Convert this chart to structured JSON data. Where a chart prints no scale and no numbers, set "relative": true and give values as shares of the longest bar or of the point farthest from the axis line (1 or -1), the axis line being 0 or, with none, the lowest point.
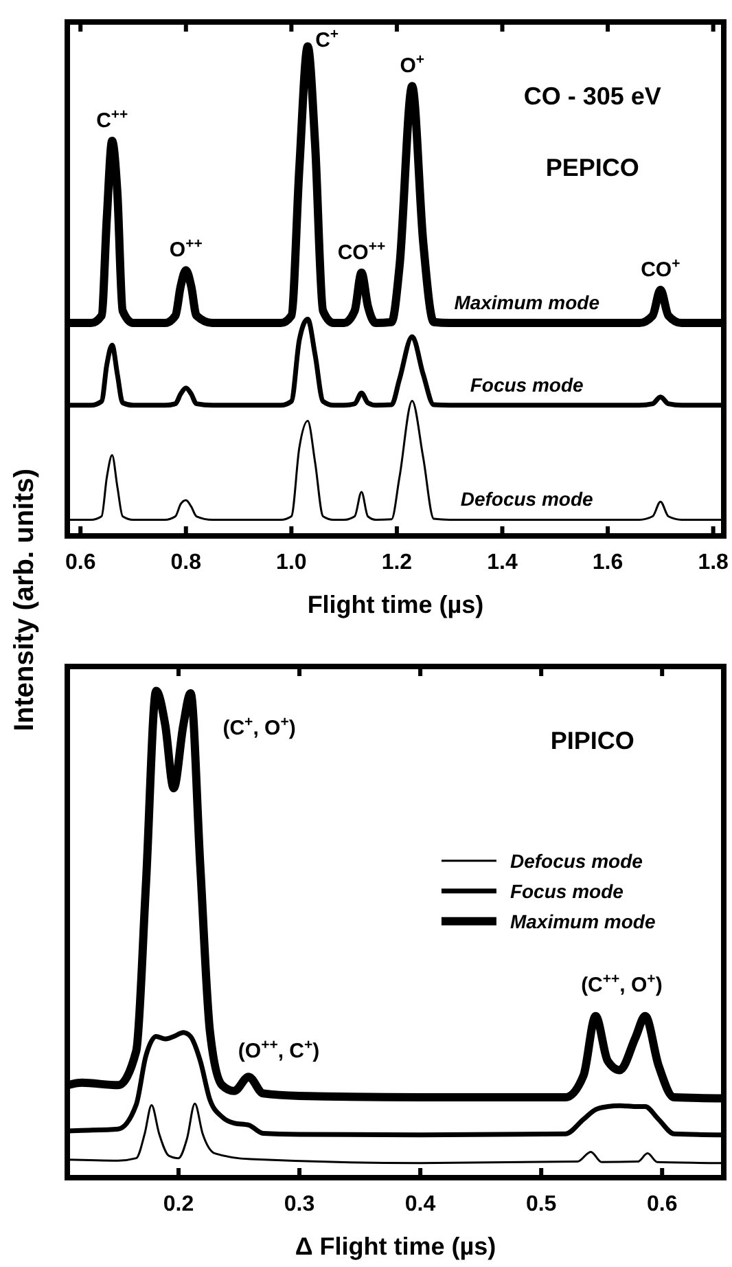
{
  "chart_data": [
    {
      "type": "line",
      "relative": true,
      "xlabel": "Flight time (µs)",
      "ylabel": "Intensity (arb. units)",
      "xlim": [
        0.575,
        1.82
      ],
      "xticks": [
        0.6,
        0.8,
        {
          "value": 1,
          "label": "1.0"
        },
        1.2,
        1.4,
        1.6,
        1.8
      ],
      "legend": false,
      "tick_labels": "x",
      "x": [
        0.575,
        0.62,
        0.64,
        0.65,
        0.66,
        0.67,
        0.68,
        0.7,
        0.76,
        0.78,
        0.79,
        0.8,
        0.81,
        0.82,
        0.85,
        0.98,
        1.0,
        1.015,
        1.031,
        1.045,
        1.06,
        1.08,
        1.1,
        1.12,
        1.133,
        1.145,
        1.16,
        1.19,
        1.205,
        1.229,
        1.25,
        1.27,
        1.3,
        1.66,
        1.685,
        1.7,
        1.715,
        1.74,
        1.82
      ],
      "series": [
        {
          "name": "Defocus mode",
          "color": "#000000",
          "values": [
            0.033,
            0.033,
            0.04,
            0.12,
            0.165,
            0.1,
            0.04,
            0.033,
            0.033,
            0.04,
            0.065,
            0.073,
            0.06,
            0.04,
            0.033,
            0.033,
            0.04,
            0.18,
            0.235,
            0.15,
            0.04,
            0.033,
            0.033,
            0.04,
            0.09,
            0.04,
            0.033,
            0.034,
            0.12,
            0.276,
            0.16,
            0.035,
            0.033,
            0.033,
            0.04,
            0.07,
            0.04,
            0.033,
            0.033
          ]
        },
        {
          "name": "Focus mode",
          "color": "#000000",
          "values": [
            0.267,
            0.267,
            0.275,
            0.35,
            0.39,
            0.33,
            0.272,
            0.267,
            0.267,
            0.27,
            0.29,
            0.302,
            0.29,
            0.27,
            0.267,
            0.267,
            0.275,
            0.4,
            0.443,
            0.37,
            0.275,
            0.267,
            0.267,
            0.27,
            0.292,
            0.272,
            0.267,
            0.268,
            0.32,
            0.407,
            0.33,
            0.268,
            0.267,
            0.267,
            0.27,
            0.284,
            0.27,
            0.267,
            0.267
          ]
        },
        {
          "name": "Maximum mode",
          "color": "#000000",
          "values": [
            0.435,
            0.435,
            0.45,
            0.65,
            0.807,
            0.7,
            0.46,
            0.435,
            0.435,
            0.45,
            0.51,
            0.543,
            0.51,
            0.45,
            0.435,
            0.435,
            0.45,
            0.75,
            1,
            0.8,
            0.46,
            0.435,
            0.435,
            0.46,
            0.538,
            0.47,
            0.435,
            0.437,
            0.55,
            0.919,
            0.6,
            0.437,
            0.435,
            0.435,
            0.45,
            0.503,
            0.45,
            0.435,
            0.435
          ]
        }
      ],
      "annotations": [
        "CO - 305 eV",
        "PEPICO",
        {
          "text": "C$^{++}$",
          "x": 0.66,
          "y": 0.807
        },
        {
          "text": "O$^{++}$",
          "x": 0.8,
          "y": 0.543
        },
        {
          "text": "C$^{+}$",
          "x": 1.031,
          "y": 1
        },
        {
          "text": "CO$^{++}$",
          "x": 1.133,
          "y": 0.538
        },
        {
          "text": "O$^{+}$",
          "x": 1.229,
          "y": 0.919
        },
        {
          "text": "CO$^{+}$",
          "x": 1.7,
          "y": 0.503
        }
      ]
    },
    {
      "type": "line",
      "relative": true,
      "xlabel": "Δ Flight time (µs)",
      "xlim": [
        0.108,
        0.651
      ],
      "xticks": [
        0.2,
        0.3,
        0.4,
        0.5,
        0.6
      ],
      "legend": "right",
      "tick_labels": "x",
      "series": [
        {
          "name": "Defocus mode",
          "color": "#000000",
          "x": [
            0.108,
            0.15,
            0.165,
            0.172,
            0.1777,
            0.184,
            0.192,
            0.2,
            0.207,
            0.2135,
            0.22,
            0.23,
            0.26,
            0.4,
            0.53,
            0.541,
            0.55,
            0.58,
            0.588,
            0.596,
            0.651
          ],
          "values": [
            0.037,
            0.035,
            0.04,
            0.09,
            0.149,
            0.09,
            0.045,
            0.04,
            0.08,
            0.152,
            0.09,
            0.05,
            0.038,
            0.03,
            0.033,
            0.053,
            0.032,
            0.033,
            0.05,
            0.032,
            0.03
          ]
        },
        {
          "name": "Focus mode",
          "color": "#000000",
          "x": [
            0.108,
            0.12,
            0.15,
            0.165,
            0.173,
            0.1815,
            0.189,
            0.196,
            0.204,
            0.21,
            0.218,
            0.226,
            0.236,
            0.246,
            0.258,
            0.27,
            0.3,
            0.4,
            0.52,
            0.535,
            0.545,
            0.555,
            0.565,
            0.578,
            0.586,
            0.597,
            0.61,
            0.651
          ],
          "values": [
            0.096,
            0.097,
            0.1,
            0.15,
            0.25,
            0.29,
            0.285,
            0.29,
            0.298,
            0.29,
            0.24,
            0.16,
            0.125,
            0.112,
            0.108,
            0.091,
            0.089,
            0.088,
            0.09,
            0.12,
            0.14,
            0.146,
            0.148,
            0.146,
            0.146,
            0.12,
            0.09,
            0.088
          ]
        },
        {
          "name": "Maximum mode",
          "color": "#000000",
          "x": [
            0.108,
            0.12,
            0.15,
            0.165,
            0.173,
            0.1815,
            0.189,
            0.196,
            0.204,
            0.21,
            0.218,
            0.226,
            0.236,
            0.246,
            0.258,
            0.27,
            0.3,
            0.4,
            0.52,
            0.535,
            0.545,
            0.555,
            0.565,
            0.578,
            0.586,
            0.597,
            0.61,
            0.651
          ],
          "values": [
            0.19,
            0.195,
            0.19,
            0.26,
            0.6,
            1,
            0.93,
            0.8,
            0.93,
            0.995,
            0.64,
            0.3,
            0.19,
            0.178,
            0.207,
            0.173,
            0.168,
            0.165,
            0.165,
            0.21,
            0.332,
            0.24,
            0.221,
            0.288,
            0.332,
            0.231,
            0.165,
            0.163
          ]
        }
      ],
      "annotations": [
        "PIPICO",
        {
          "text": "(C$^{+}$, O$^{+}$)",
          "x": 0.21,
          "y": 0.995
        },
        {
          "text": "(O$^{++}$, C$^{+}$)",
          "x": 0.258,
          "y": 0.207
        },
        {
          "text": "(C$^{++}$, O$^{+}$)",
          "x": 0.545,
          "y": 0.332
        }
      ]
    }
  ]
}
